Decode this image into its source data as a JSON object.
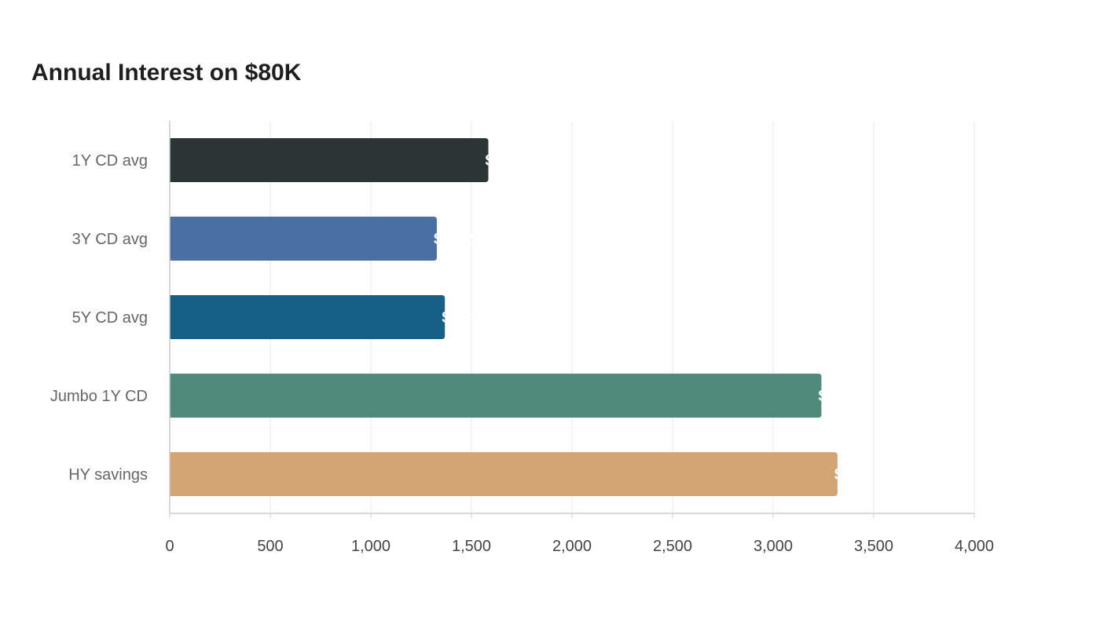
{
  "chart_data": {
    "type": "bar",
    "orientation": "horizontal",
    "title": "Annual Interest on $80K",
    "xlabel": "",
    "ylabel": "",
    "categories": [
      "1Y CD avg",
      "3Y CD avg",
      "5Y CD avg",
      "Jumbo 1Y CD",
      "HY savings"
    ],
    "values": [
      1584,
      1328,
      1368,
      3240,
      3320
    ],
    "data_labels": [
      "$1,584",
      "$1,328",
      "$1,368",
      "$3,240",
      "$3,320"
    ],
    "colors": [
      "#2d3436",
      "#4a6fa5",
      "#166088",
      "#4f8a7a",
      "#d4a574"
    ],
    "xlim": [
      0,
      4000
    ],
    "xticks": [
      0,
      500,
      1000,
      1500,
      2000,
      2500,
      3000,
      3500,
      4000
    ],
    "xtick_labels": [
      "0",
      "500",
      "1,000",
      "1,500",
      "2,000",
      "2,500",
      "3,000",
      "3,500",
      "4,000"
    ],
    "grid": "vertical",
    "legend": "none"
  }
}
